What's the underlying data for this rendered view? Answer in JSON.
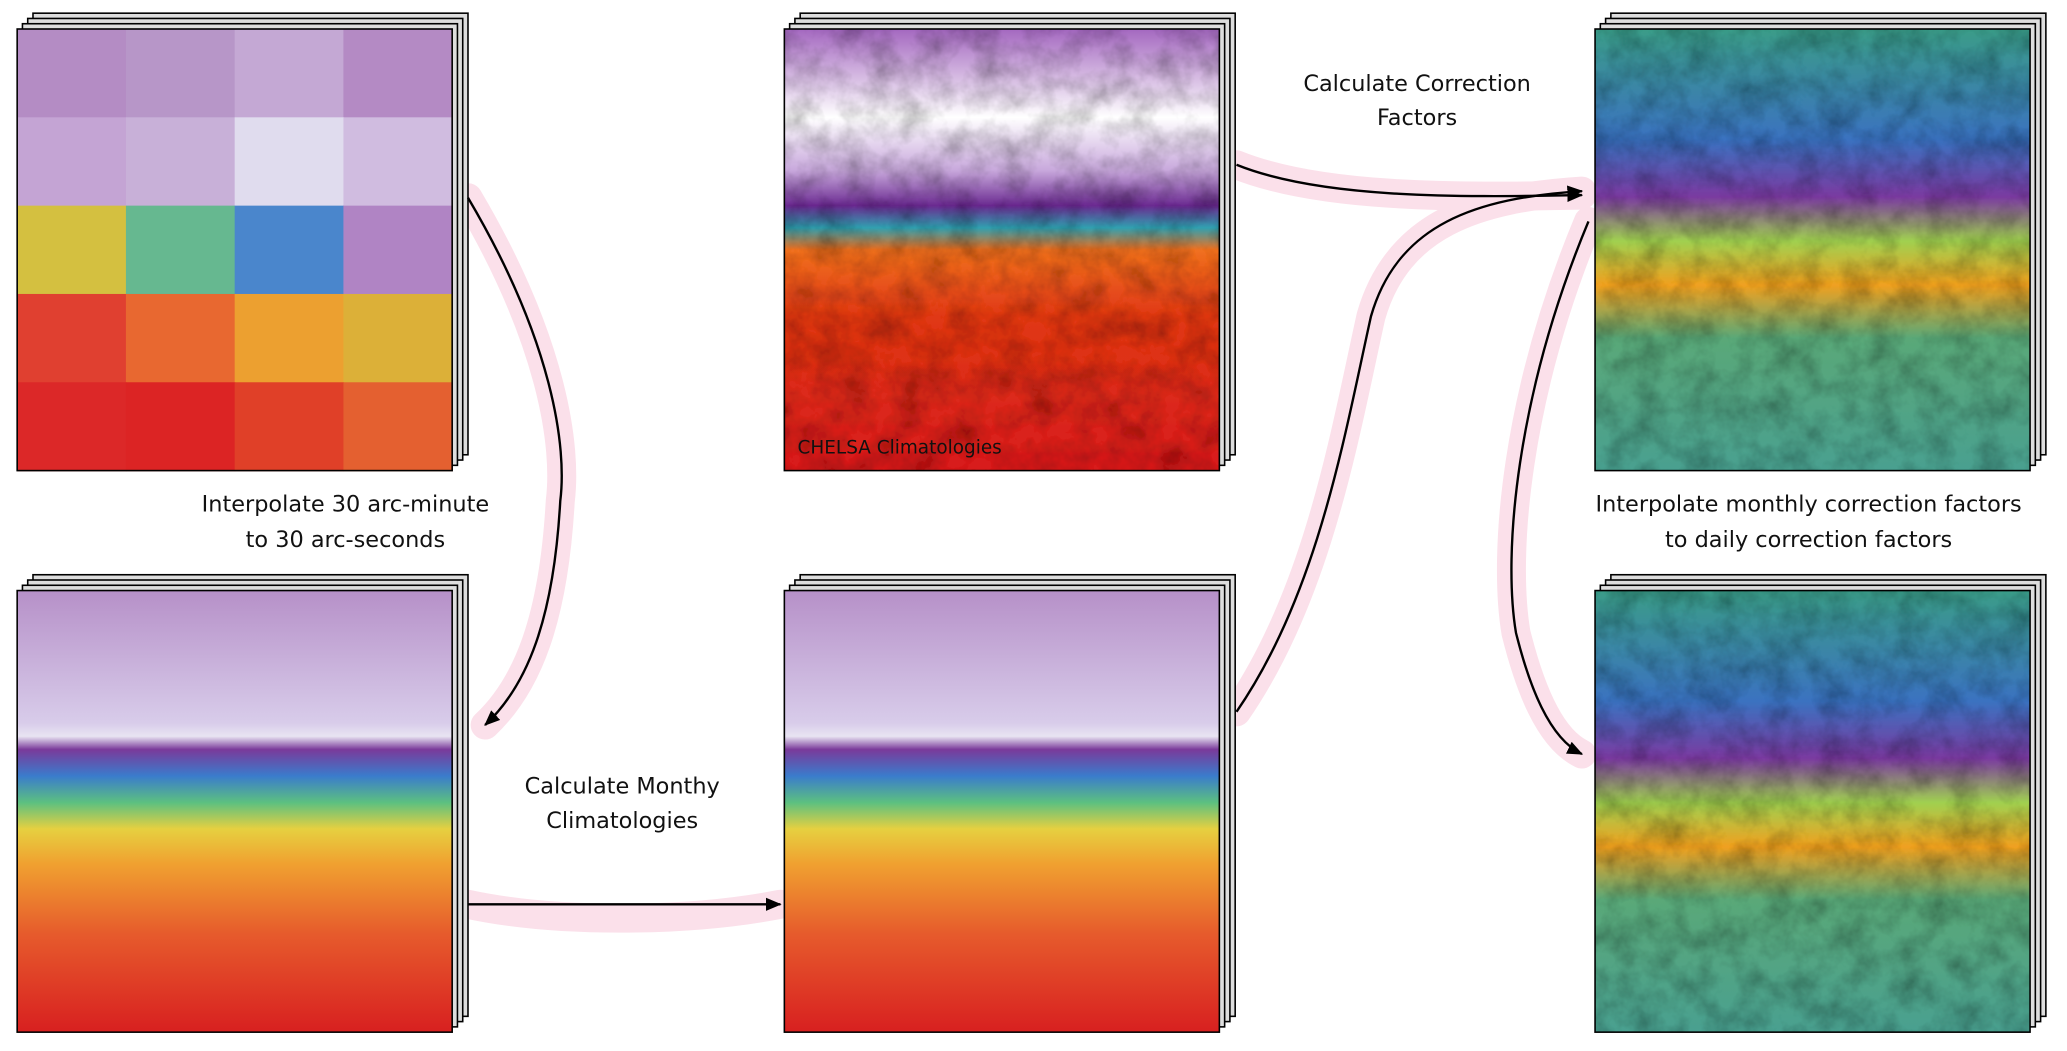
{
  "labels": {
    "interpolate_spatial": [
      "Interpolate 30 arc-minute",
      "to 30 arc-seconds"
    ],
    "monthly": [
      "Calculate Monthy",
      "Climatologies"
    ],
    "correction": [
      "Calculate Correction",
      "Factors"
    ],
    "interpolate_daily": [
      "Interpolate monthly correction factors",
      "to daily correction factors"
    ],
    "chelsa": "CHELSA Climatologies"
  }
}
